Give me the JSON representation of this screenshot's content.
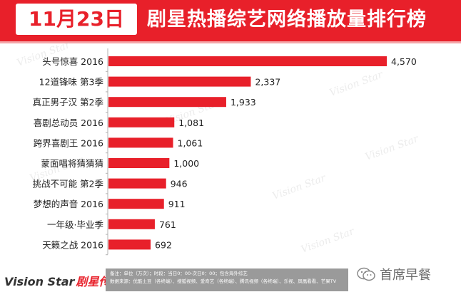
{
  "header": {
    "date": "11月23日",
    "title": "剧星热播综艺网络播放量排行榜"
  },
  "chart_data": {
    "type": "bar",
    "orientation": "horizontal",
    "categories": [
      "头号惊喜 2016",
      "12道锋味 第3季",
      "真正男子汉 第2季",
      "喜剧总动员 2016",
      "跨界喜剧王 2016",
      "蒙面唱将猜猜猜",
      "挑战不可能 第2季",
      "梦想的声音 2016",
      "一年级·毕业季",
      "天籁之战 2016"
    ],
    "values": [
      4570,
      2337,
      1933,
      1081,
      1061,
      1000,
      946,
      911,
      761,
      692
    ],
    "value_labels": [
      "4,570",
      "2,337",
      "1,933",
      "1,081",
      "1,061",
      "1,000",
      "946",
      "911",
      "761",
      "692"
    ],
    "title": "",
    "xlabel": "",
    "ylabel": "",
    "xlim": [
      0,
      4570
    ],
    "grid": false,
    "legend": "none",
    "bar_color": "#e8202a"
  },
  "footer": {
    "brand_en": "Vision Star",
    "brand_cn": "剧星传媒",
    "note_line1": "备注：单位（万次）；时段：当日0：00-次日0：00；包含海外综艺",
    "note_line2": "数据来源：优酷土豆（各终端）、搜狐视频、爱奇艺（各终端）、腾讯视频（各终端）、乐视、凤凰看看、芒果TV",
    "watermark_text": "Vision Star",
    "wechat_name": "首席早餐"
  }
}
